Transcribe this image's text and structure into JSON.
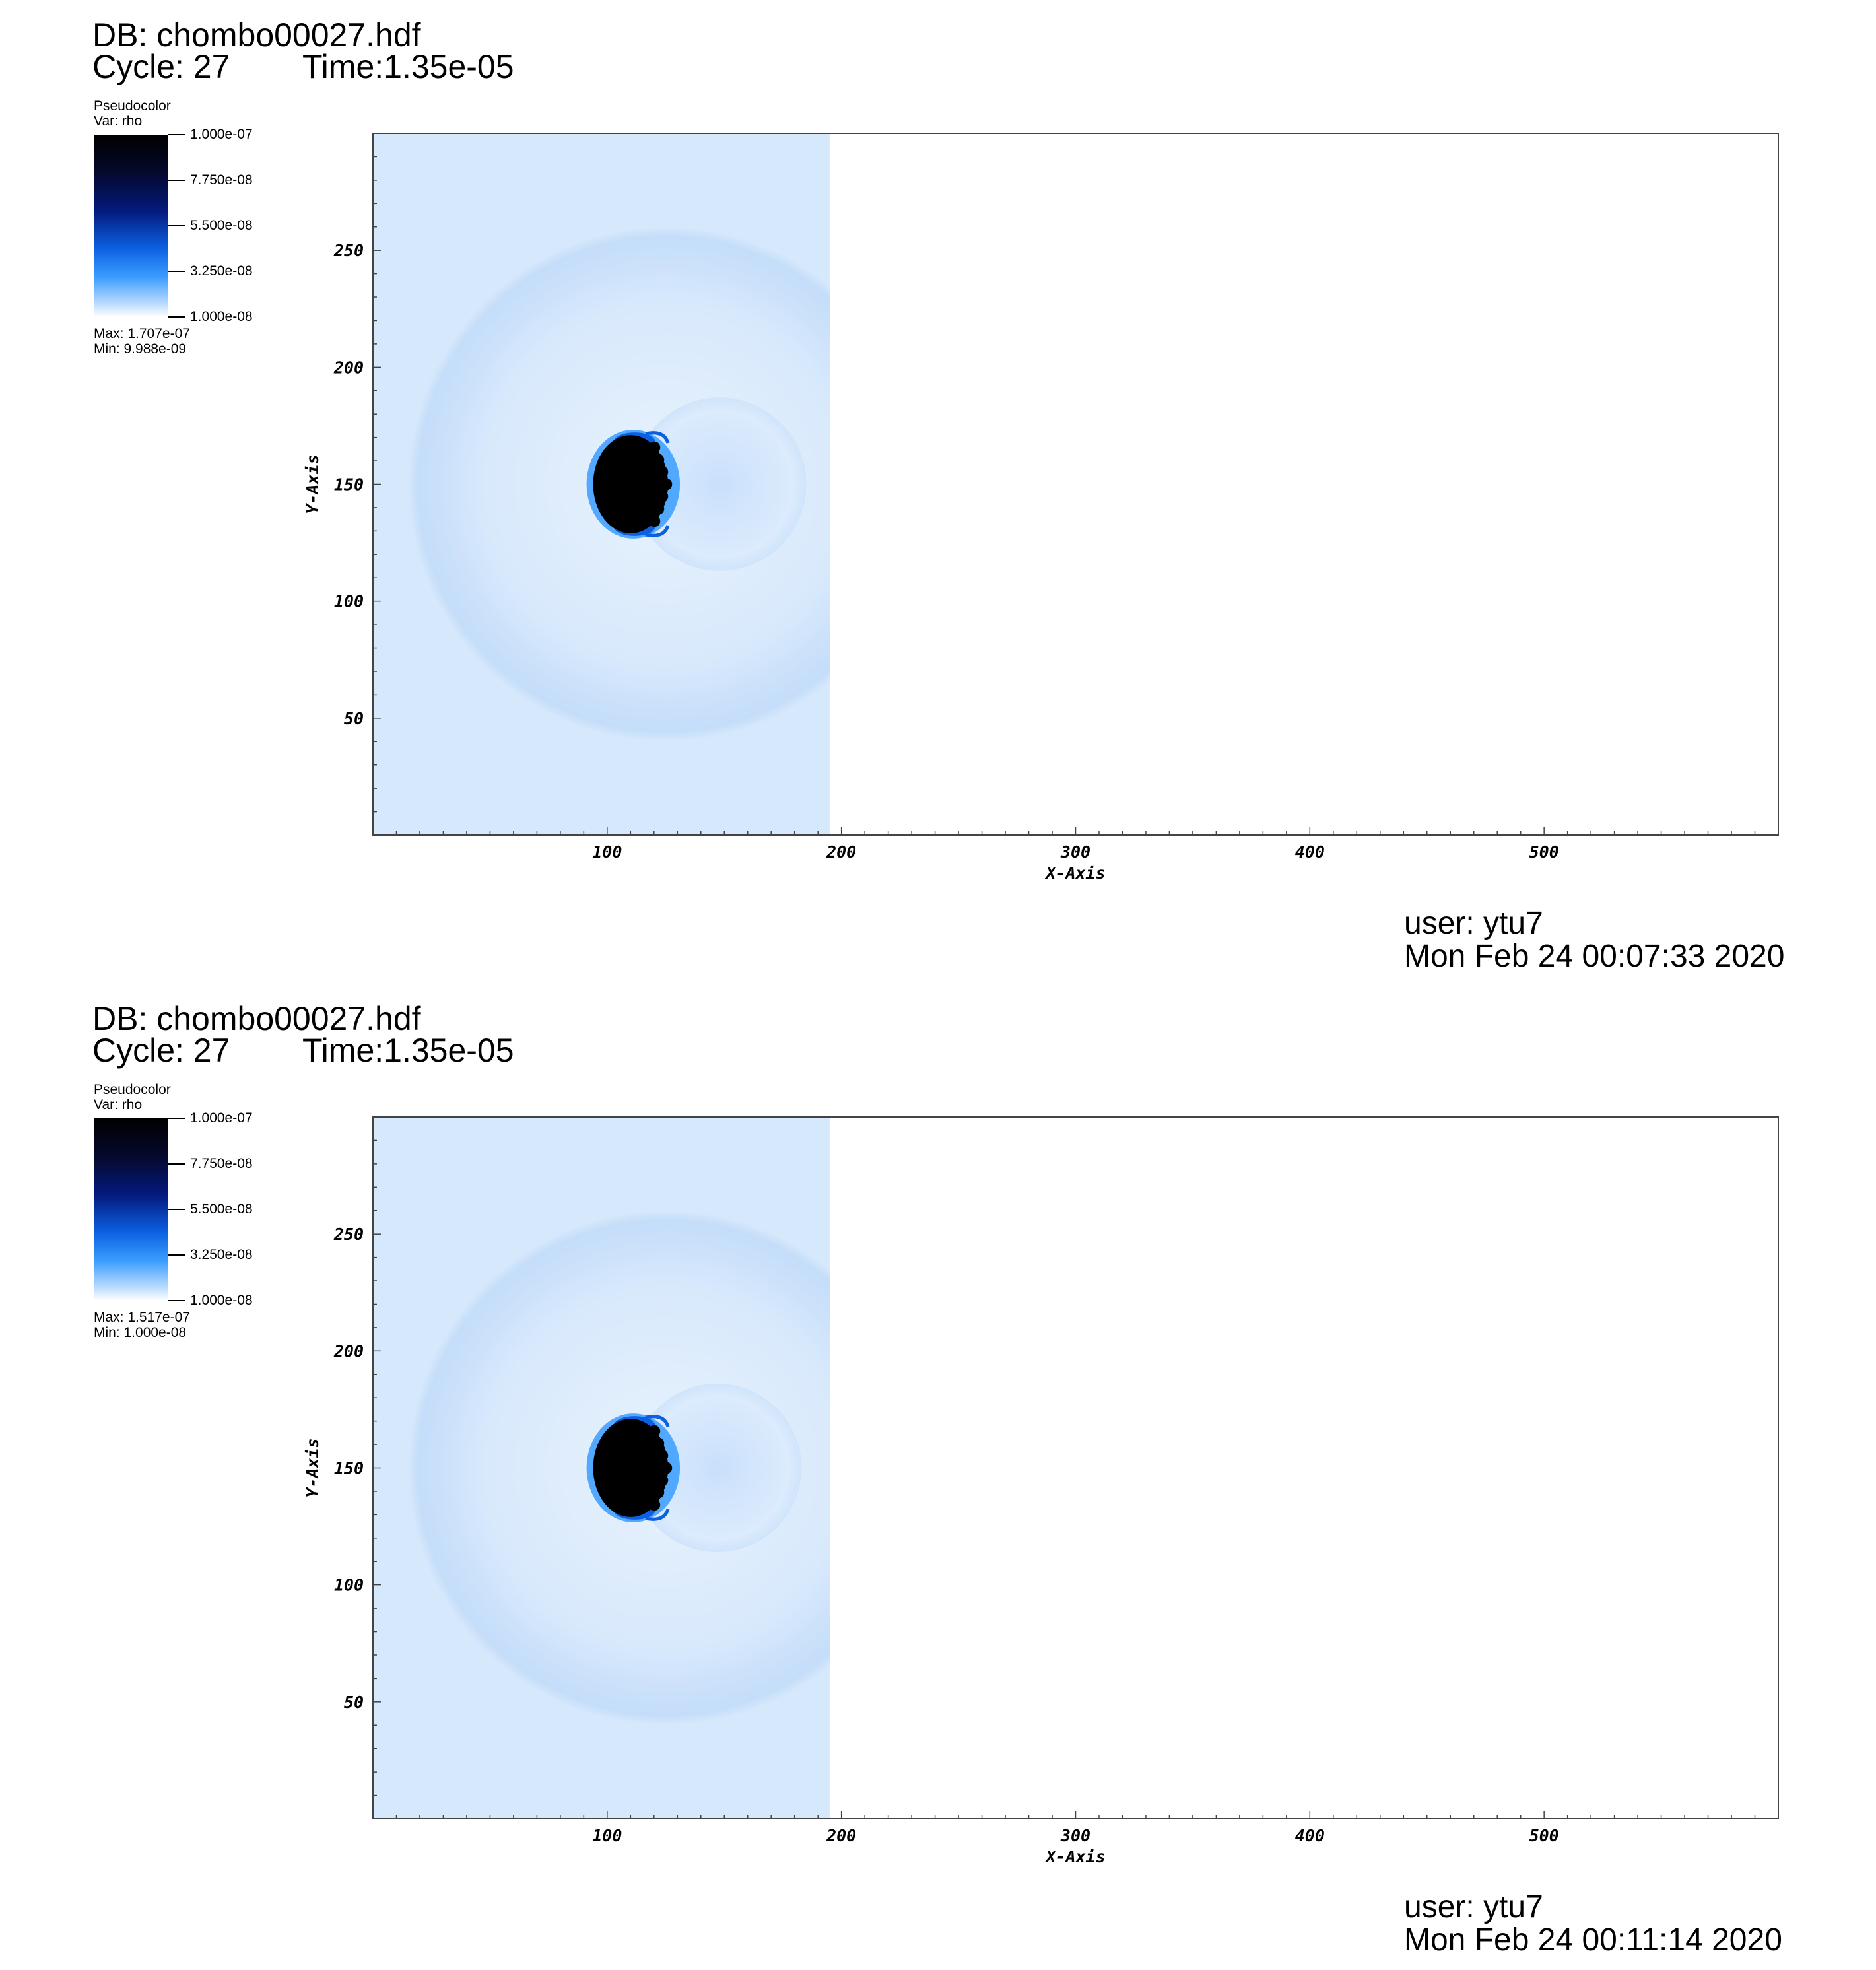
{
  "panels": [
    {
      "db": "DB: chombo00027.hdf",
      "cycle": "Cycle: 27",
      "time": "Time:1.35e-05",
      "legend": {
        "title": "Pseudocolor",
        "var": "Var: rho",
        "ticks": [
          "1.000e-07",
          "7.750e-08",
          "5.500e-08",
          "3.250e-08",
          "1.000e-08"
        ],
        "max": "Max:  1.707e-07",
        "min": "Min:  9.988e-09"
      },
      "user": "user: ytu7",
      "date": "Mon Feb 24 00:07:33 2020"
    },
    {
      "db": "DB: chombo00027.hdf",
      "cycle": "Cycle: 27",
      "time": "Time:1.35e-05",
      "legend": {
        "title": "Pseudocolor",
        "var": "Var: rho",
        "ticks": [
          "1.000e-07",
          "7.750e-08",
          "5.500e-08",
          "3.250e-08",
          "1.000e-08"
        ],
        "max": "Max:  1.517e-07",
        "min": "Min:  1.000e-08"
      },
      "user": "user: ytu7",
      "date": "Mon Feb 24 00:11:14 2020"
    }
  ],
  "chart_data": [
    {
      "type": "heatmap",
      "variable": "rho",
      "xlabel": "X-Axis",
      "ylabel": "Y-Axis",
      "xlim": [
        0,
        600
      ],
      "ylim": [
        0,
        300
      ],
      "xticks": [
        100,
        200,
        300,
        400,
        500
      ],
      "yticks": [
        50,
        100,
        150,
        200,
        250
      ],
      "color_range": [
        1e-08,
        1e-07
      ],
      "colormap": [
        "#ffffff",
        "#3a9cff",
        "#0b5fe0",
        "#041a7e",
        "#000000"
      ],
      "field": {
        "filled_region_x": [
          0,
          195
        ],
        "background_color": "#d6e8fb",
        "shock_shell": {
          "center": [
            125,
            150
          ],
          "radius": 110
        },
        "dense_core": {
          "center": [
            110,
            150
          ],
          "radius_x": 16,
          "radius_y": 21
        },
        "secondary_shell": {
          "center": [
            148,
            150
          ],
          "radius": 37
        }
      }
    },
    {
      "type": "heatmap",
      "variable": "rho",
      "xlabel": "X-Axis",
      "ylabel": "Y-Axis",
      "xlim": [
        0,
        600
      ],
      "ylim": [
        0,
        300
      ],
      "xticks": [
        100,
        200,
        300,
        400,
        500
      ],
      "yticks": [
        50,
        100,
        150,
        200,
        250
      ],
      "color_range": [
        1e-08,
        1e-07
      ],
      "colormap": [
        "#ffffff",
        "#3a9cff",
        "#0b5fe0",
        "#041a7e",
        "#000000"
      ],
      "field": {
        "filled_region_x": [
          0,
          195
        ],
        "background_color": "#d6e8fb",
        "shock_shell": {
          "center": [
            125,
            150
          ],
          "radius": 110
        },
        "dense_core": {
          "center": [
            110,
            150
          ],
          "radius_x": 16,
          "radius_y": 21
        },
        "secondary_shell": {
          "center": [
            147,
            150
          ],
          "radius": 36
        }
      }
    }
  ]
}
